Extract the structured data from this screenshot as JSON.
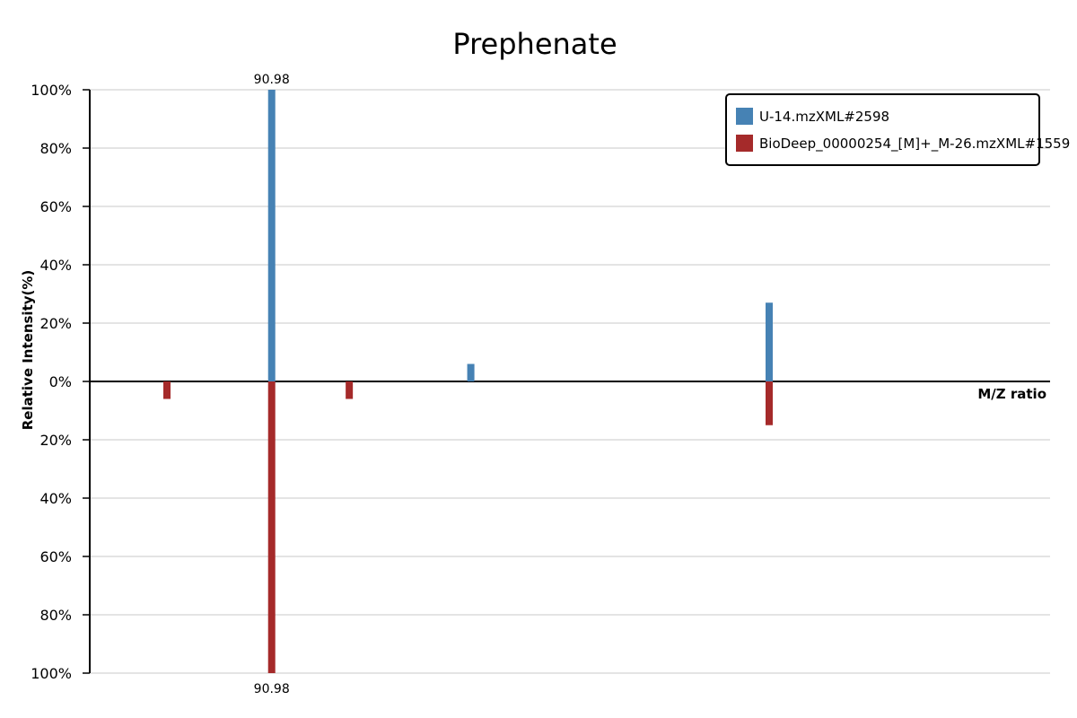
{
  "chart_data": {
    "type": "bar",
    "title": "Prephenate",
    "xlabel": "M/Z ratio",
    "ylabel": "Relative Intensity(%)",
    "ylim": [
      -100,
      100
    ],
    "y_ticks": [
      {
        "value": 100,
        "label": "100%"
      },
      {
        "value": 80,
        "label": "80%"
      },
      {
        "value": 60,
        "label": "60%"
      },
      {
        "value": 40,
        "label": "40%"
      },
      {
        "value": 20,
        "label": "20%"
      },
      {
        "value": 0,
        "label": "0%"
      },
      {
        "value": -20,
        "label": "20%"
      },
      {
        "value": -40,
        "label": "40%"
      },
      {
        "value": -60,
        "label": "60%"
      },
      {
        "value": -80,
        "label": "80%"
      },
      {
        "value": -100,
        "label": "100%"
      }
    ],
    "grid": true,
    "legend_position": "top-right",
    "series": [
      {
        "name": "U-14.mzXML#2598",
        "color": "#4682b4",
        "direction": "up",
        "peaks": [
          {
            "mz": 90.98,
            "intensity": 100,
            "label": "90.98"
          },
          {
            "mz": 109.0,
            "intensity": 6,
            "label": ""
          },
          {
            "mz": 136.0,
            "intensity": 27,
            "label": ""
          }
        ]
      },
      {
        "name": "BioDeep_00000254_[M]+_M-26.mzXML#1559",
        "color": "#a52a2a",
        "direction": "down",
        "peaks": [
          {
            "mz": 81.5,
            "intensity": 6,
            "label": ""
          },
          {
            "mz": 90.98,
            "intensity": 100,
            "label": "90.98"
          },
          {
            "mz": 98.0,
            "intensity": 6,
            "label": ""
          },
          {
            "mz": 136.0,
            "intensity": 15,
            "label": ""
          }
        ]
      }
    ]
  }
}
